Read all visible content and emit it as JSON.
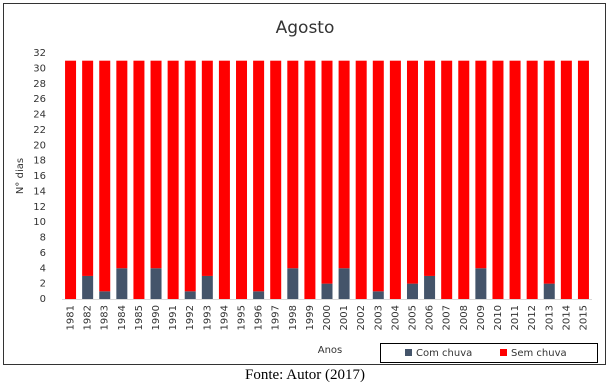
{
  "chart_data": {
    "type": "stacked-bar",
    "title": "Agosto",
    "x_label": "Anos",
    "y_label": "N° dias",
    "categories": [
      "1981",
      "1982",
      "1983",
      "1984",
      "1985",
      "1990",
      "1991",
      "1992",
      "1993",
      "1994",
      "1995",
      "1996",
      "1997",
      "1998",
      "1999",
      "2000",
      "2001",
      "2002",
      "2003",
      "2004",
      "2005",
      "2006",
      "2007",
      "2008",
      "2009",
      "2010",
      "2011",
      "2012",
      "2013",
      "2014",
      "2015"
    ],
    "series": [
      {
        "name": "Com chuva",
        "color": "#44546a",
        "values": [
          0,
          3,
          1,
          4,
          0,
          4,
          0,
          1,
          3,
          0,
          0,
          1,
          0,
          4,
          0,
          2,
          4,
          0,
          1,
          0,
          2,
          3,
          0,
          0,
          4,
          0,
          0,
          0,
          2,
          0,
          0
        ]
      },
      {
        "name": "Sem chuva",
        "color": "#ff0000",
        "values": [
          31,
          28,
          30,
          27,
          31,
          27,
          31,
          30,
          28,
          31,
          31,
          30,
          31,
          27,
          31,
          29,
          27,
          31,
          30,
          31,
          29,
          28,
          31,
          31,
          27,
          31,
          31,
          31,
          29,
          31,
          31
        ]
      }
    ],
    "ylim": [
      0,
      32
    ],
    "yticks": [
      0,
      2,
      4,
      6,
      8,
      10,
      12,
      14,
      16,
      18,
      20,
      22,
      24,
      26,
      28,
      30,
      32
    ],
    "grid": false,
    "legend": "bottom-right"
  },
  "caption": "Fonte: Autor (2017)"
}
